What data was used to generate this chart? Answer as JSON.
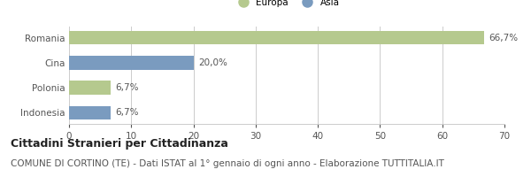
{
  "categories": [
    "Romania",
    "Cina",
    "Polonia",
    "Indonesia"
  ],
  "values": [
    66.7,
    20.0,
    6.7,
    6.7
  ],
  "bar_colors": [
    "#b5c98e",
    "#7a9bbf",
    "#b5c98e",
    "#7a9bbf"
  ],
  "bar_labels": [
    "66,7%",
    "20,0%",
    "6,7%",
    "6,7%"
  ],
  "legend_labels": [
    "Europa",
    "Asia"
  ],
  "legend_colors": [
    "#b5c98e",
    "#7a9bbf"
  ],
  "xlim": [
    0,
    70
  ],
  "xticks": [
    0,
    10,
    20,
    30,
    40,
    50,
    60,
    70
  ],
  "title": "Cittadini Stranieri per Cittadinanza",
  "subtitle": "COMUNE DI CORTINO (TE) - Dati ISTAT al 1° gennaio di ogni anno - Elaborazione TUTTITALIA.IT",
  "title_fontsize": 9,
  "subtitle_fontsize": 7.5,
  "label_fontsize": 7.5,
  "tick_fontsize": 7.5,
  "background_color": "#ffffff",
  "grid_color": "#cccccc"
}
